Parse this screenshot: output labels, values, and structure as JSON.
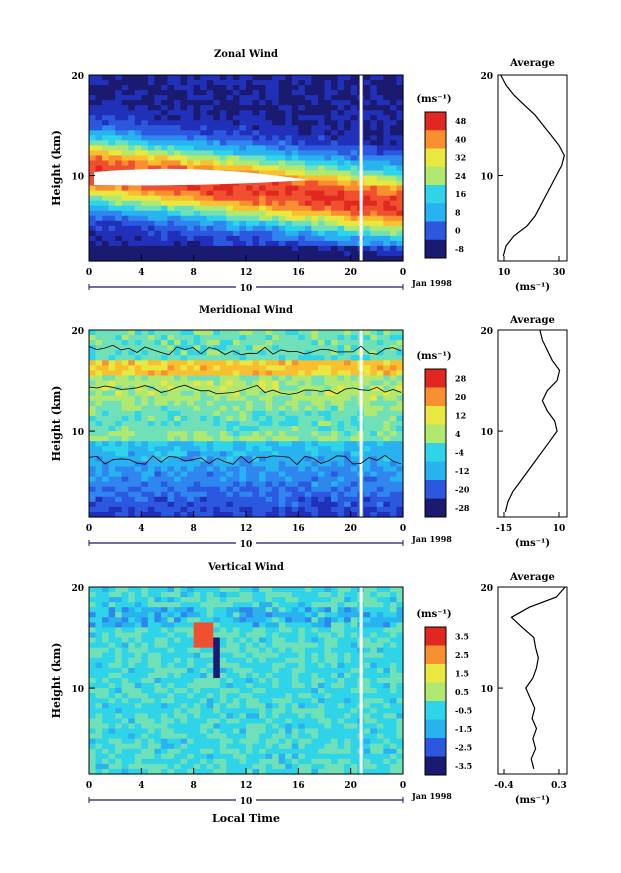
{
  "x_tick_labels": [
    "0",
    "4",
    "8",
    "12",
    "16",
    "20",
    "0"
  ],
  "day_label": "10",
  "date_label": "Jan 1998",
  "xlabel": "Local Time",
  "ylabel": "Height (km)",
  "y_tick_labels": [
    "10",
    "20"
  ],
  "units_label": "(ms⁻¹)",
  "units_axis": "(ms⁻¹)",
  "avg_title": "Average",
  "chart_data": [
    {
      "type": "heatmap",
      "title": "Zonal Wind",
      "xlabel": "Local Time",
      "ylabel": "Height (km)",
      "x_range": [
        0,
        24
      ],
      "y_range": [
        1.5,
        20
      ],
      "colorbar": {
        "units": "(ms⁻¹)",
        "ticks": [
          "-8",
          "0",
          "8",
          "16",
          "24",
          "32",
          "40",
          "48"
        ],
        "range": [
          -8,
          52
        ]
      },
      "description_values": {
        "jet_core_height_km": 10,
        "max_speed": 52,
        "surface_speed": 0
      },
      "average_profile": {
        "title": "Average",
        "xlabel": "(ms⁻¹)",
        "x_ticks": [
          "10",
          "30"
        ],
        "x_range": [
          8,
          34
        ],
        "heights": [
          2,
          3,
          4,
          5,
          6,
          7,
          8,
          9,
          10,
          11,
          12,
          13,
          14,
          15,
          16,
          17,
          18,
          19,
          20
        ],
        "values": [
          10,
          11,
          14,
          19,
          22,
          24,
          26,
          28,
          30,
          32,
          33,
          31,
          28,
          25,
          22,
          18,
          14,
          11,
          9
        ]
      }
    },
    {
      "type": "heatmap",
      "title": "Meridional Wind",
      "xlabel": "Local Time",
      "ylabel": "Height (km)",
      "x_range": [
        0,
        24
      ],
      "y_range": [
        1.5,
        20
      ],
      "colorbar": {
        "units": "(ms⁻¹)",
        "ticks": [
          "-28",
          "-20",
          "-12",
          "-4",
          "4",
          "12",
          "20",
          "28"
        ],
        "range": [
          -32,
          32
        ]
      },
      "average_profile": {
        "title": "Average",
        "xlabel": "(ms⁻¹)",
        "x_ticks": [
          "-15",
          "10"
        ],
        "x_range": [
          -16,
          12
        ],
        "heights": [
          2,
          3,
          4,
          5,
          6,
          7,
          8,
          9,
          10,
          11,
          12,
          13,
          14,
          15,
          16,
          17,
          18,
          19,
          20
        ],
        "values": [
          -13,
          -12,
          -10,
          -7,
          -4,
          -1,
          2,
          5,
          8,
          7,
          4,
          2,
          4,
          8,
          9,
          6,
          4,
          2,
          1
        ]
      }
    },
    {
      "type": "heatmap",
      "title": "Vertical Wind",
      "xlabel": "Local Time",
      "ylabel": "Height (km)",
      "x_range": [
        0,
        24
      ],
      "y_range": [
        1.5,
        20
      ],
      "colorbar": {
        "units": "(ms⁻¹)",
        "ticks": [
          "-3.5",
          "-2.5",
          "-1.5",
          "-0.5",
          "0.5",
          "1.5",
          "2.5",
          "3.5"
        ],
        "range": [
          -4,
          4
        ]
      },
      "average_profile": {
        "title": "Average",
        "xlabel": "(ms⁻¹)",
        "x_ticks": [
          "-0.4",
          "0.3"
        ],
        "x_range": [
          -0.45,
          0.32
        ],
        "heights": [
          2,
          3,
          4,
          5,
          6,
          7,
          8,
          9,
          10,
          11,
          12,
          13,
          14,
          15,
          16,
          17,
          18,
          19,
          20
        ],
        "values": [
          -0.05,
          -0.08,
          -0.03,
          -0.06,
          -0.02,
          -0.07,
          -0.04,
          -0.09,
          -0.14,
          -0.06,
          -0.02,
          0.0,
          -0.03,
          -0.05,
          -0.18,
          -0.3,
          -0.1,
          0.2,
          0.3
        ]
      }
    }
  ]
}
